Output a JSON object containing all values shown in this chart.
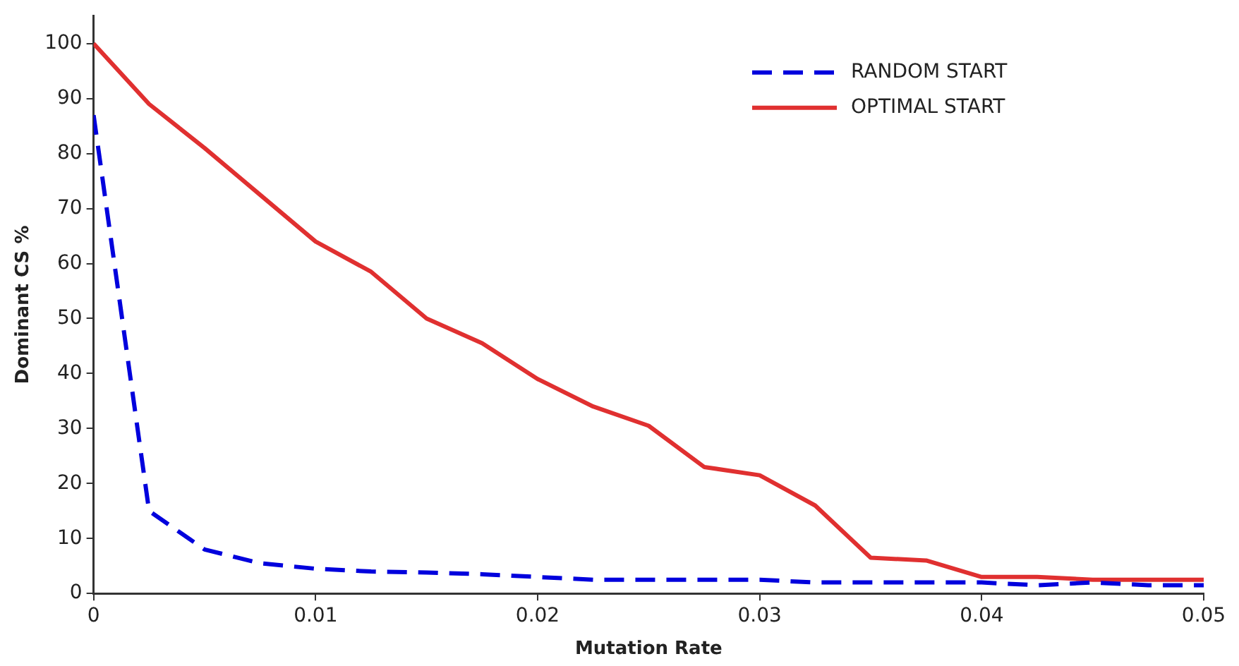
{
  "chart_data": {
    "type": "line",
    "xlabel": "Mutation Rate",
    "ylabel": "Dominant CS %",
    "x": [
      0,
      0.0025,
      0.005,
      0.0075,
      0.01,
      0.0125,
      0.015,
      0.0175,
      0.02,
      0.0225,
      0.025,
      0.0275,
      0.03,
      0.0325,
      0.035,
      0.0375,
      0.04,
      0.0425,
      0.045,
      0.0475,
      0.05
    ],
    "series": [
      {
        "name": "RANDOM START",
        "color": "#0000dd",
        "line_style": "dashed",
        "values": [
          87,
          15,
          8,
          5.5,
          4.5,
          4,
          3.8,
          3.5,
          3,
          2.5,
          2.5,
          2.5,
          2.5,
          2,
          2,
          2,
          2,
          1.5,
          2,
          1.5,
          1.5
        ]
      },
      {
        "name": "OPTIMAL START",
        "color": "#e03030",
        "line_style": "solid",
        "values": [
          100,
          89,
          81,
          72.5,
          64,
          58.5,
          50,
          45.5,
          39,
          34,
          30.5,
          23,
          21.5,
          16,
          6.5,
          6,
          3,
          3,
          2.5,
          2.5,
          2.5
        ]
      }
    ],
    "xlim": [
      0,
      0.05
    ],
    "xticks": [
      0,
      0.01,
      0.02,
      0.03,
      0.04,
      0.05
    ],
    "ylim": [
      0,
      105
    ],
    "yticks": [
      0,
      10,
      20,
      30,
      40,
      50,
      60,
      70,
      80,
      90,
      100
    ],
    "grid": false,
    "legend": "top right",
    "marker": "none"
  }
}
